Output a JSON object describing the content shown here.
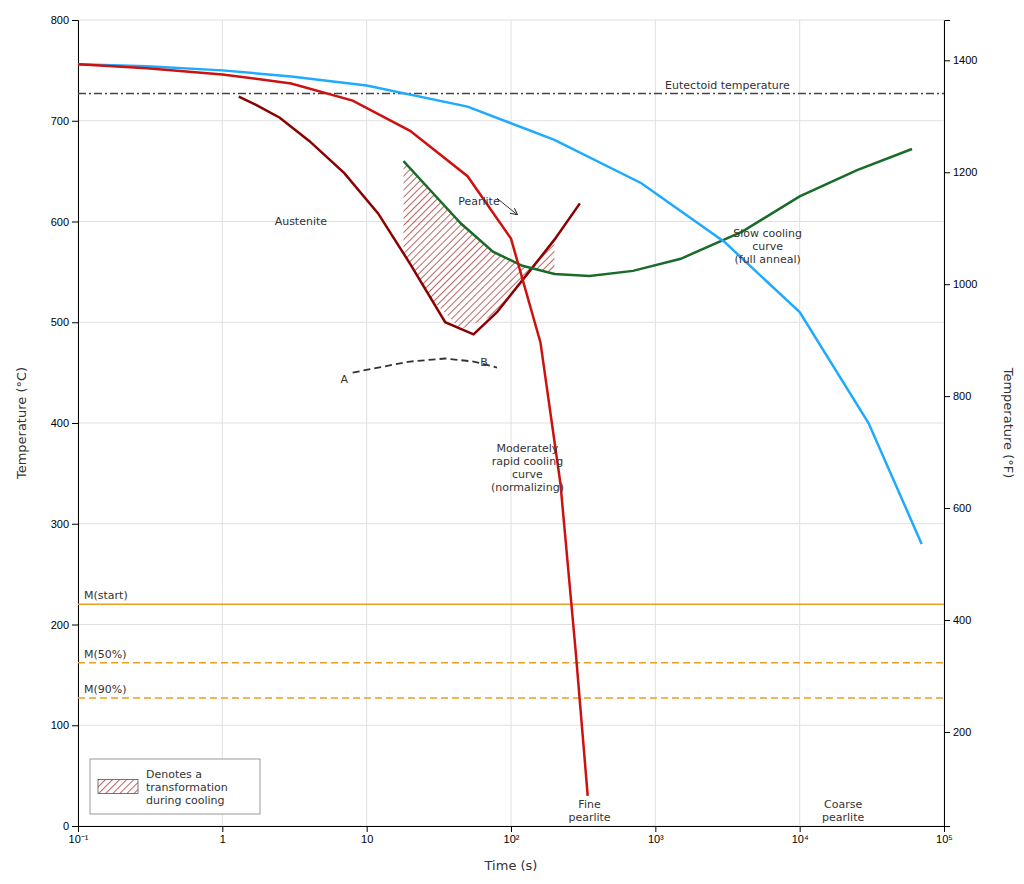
{
  "chart_data": {
    "type": "line",
    "xlabel": "Time (s)",
    "ylabel": "Temperature (°C)",
    "y2label": "Temperature (°F)",
    "log": "x",
    "grid": true,
    "legend": "lower left",
    "xlim": [
      0.1,
      100000
    ],
    "xticks": [
      {
        "value": 0.1,
        "label": "10⁻¹"
      },
      1,
      10,
      {
        "value": 100,
        "label": "10²"
      },
      {
        "value": 1000,
        "label": "10³"
      },
      {
        "value": 10000,
        "label": "10⁴"
      },
      {
        "value": 100000,
        "label": "10⁵"
      }
    ],
    "ylim": [
      0,
      800
    ],
    "yticks": [
      0,
      100,
      200,
      300,
      400,
      500,
      600,
      700,
      800
    ],
    "y2lim": [
      32,
      1472
    ],
    "y2ticks": [
      200,
      400,
      600,
      800,
      1000,
      1200,
      1400
    ],
    "series": [
      {
        "color": "#8B0000",
        "line_style": "solid",
        "x": [
          1.3,
          1.7,
          2.5,
          4,
          7,
          12,
          20,
          35,
          55,
          80,
          130,
          200,
          300
        ],
        "values": [
          724,
          716,
          703,
          680,
          648,
          608,
          558,
          500,
          488,
          510,
          548,
          582,
          618
        ]
      },
      {
        "color": "#1A6B2A",
        "line_style": "solid",
        "x": [
          18,
          28,
          45,
          75,
          120,
          200,
          350,
          700,
          1500,
          4000,
          10000,
          25000,
          60000
        ],
        "values": [
          660,
          630,
          598,
          570,
          556,
          548,
          546,
          551,
          563,
          590,
          625,
          651,
          672
        ]
      },
      {
        "color": "#1EAAFF",
        "line_style": "solid",
        "x": [
          0.1,
          0.3,
          1,
          3,
          10,
          50,
          200,
          800,
          3000,
          10000,
          30000,
          70000
        ],
        "values": [
          756,
          754,
          750,
          744,
          735,
          714,
          681,
          638,
          580,
          510,
          400,
          280
        ]
      },
      {
        "color": "#CC1111",
        "line_style": "solid",
        "x": [
          0.1,
          0.3,
          1,
          3,
          8,
          20,
          50,
          100,
          160,
          220,
          280,
          340
        ],
        "values": [
          756,
          752,
          746,
          737,
          720,
          690,
          645,
          583,
          480,
          340,
          175,
          30
        ]
      },
      {
        "color": "#333333",
        "line_style": "dashed",
        "x": [
          8,
          12,
          20,
          35,
          55,
          80
        ],
        "values": [
          450,
          455,
          461,
          464,
          461,
          455
        ]
      }
    ],
    "hatch_band": {
      "name": "Denotes a\ntransformation\nduring cooling",
      "color": "#8B0000",
      "x": [
        18,
        28,
        45,
        75,
        120,
        180,
        200
      ],
      "lower": [
        568.313,
        523.127,
        493.328,
        506.211,
        541.735,
        573.684,
        582
      ],
      "upper": [
        660,
        630,
        598,
        570,
        556,
        549.65,
        548
      ]
    },
    "reference_lines": [
      {
        "value": 727,
        "label": "Eutectoid temperature",
        "color": "#444444",
        "line_style": "dashdot"
      },
      {
        "value": 220,
        "label": "M(start)",
        "color": "#E8A020",
        "line_style": "solid"
      },
      {
        "value": 162,
        "label": "M(50%)",
        "color": "#E8A020",
        "line_style": "dashed"
      },
      {
        "value": 127,
        "label": "M(90%)",
        "color": "#E8A020",
        "line_style": "dashed"
      }
    ],
    "annotations": [
      {
        "text": "Slow cooling\ncurve\n(full anneal)",
        "x": 6000,
        "y": 575
      },
      {
        "text": "Moderately\nrapid cooling\ncurve\n(normalizing)",
        "x": 130,
        "y": 355
      },
      {
        "text": "Fine\npearlite",
        "x": 350,
        "y": 10
      },
      {
        "text": "Coarse\npearlite",
        "x": 20000,
        "y": 10
      },
      {
        "text": "Austenite",
        "x": 3.5,
        "y": 600
      },
      {
        "text": "Pearlite",
        "x": 60,
        "y": 620,
        "arrow": {
          "x_from": 80,
          "y_from": 623,
          "x_to": 110,
          "y_to": 607
        }
      },
      {
        "text": "A",
        "x": 7,
        "y": 443
      },
      {
        "text": "B",
        "x": 65,
        "y": 460
      }
    ]
  }
}
